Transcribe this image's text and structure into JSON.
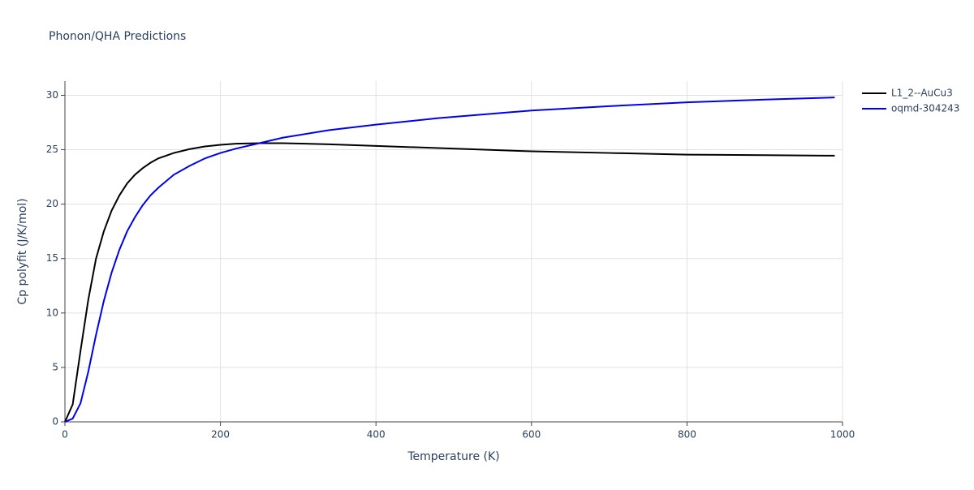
{
  "chart_data": {
    "type": "line",
    "title": "Phonon/QHA Predictions",
    "x_label": "Temperature (K)",
    "y_label": "Cp polyfit (J/K/mol)",
    "x": [
      0,
      10,
      20,
      30,
      40,
      50,
      60,
      70,
      80,
      90,
      100,
      110,
      120,
      140,
      160,
      180,
      200,
      220,
      250,
      280,
      340,
      400,
      480,
      600,
      700,
      800,
      900,
      990
    ],
    "series": [
      {
        "name": "L1_2--AuCu3",
        "color": "#000000",
        "values": [
          0,
          1.6,
          6.5,
          11.2,
          15,
          17.5,
          19.4,
          20.8,
          21.9,
          22.7,
          23.3,
          23.8,
          24.2,
          24.7,
          25.05,
          25.3,
          25.45,
          25.55,
          25.6,
          25.6,
          25.5,
          25.35,
          25.15,
          24.85,
          24.7,
          24.55,
          24.5,
          24.45
        ]
      },
      {
        "name": "oqmd-304243",
        "color": "#0000ee",
        "values": [
          0,
          0.3,
          1.7,
          4.6,
          8,
          11.1,
          13.7,
          15.8,
          17.5,
          18.8,
          19.9,
          20.8,
          21.5,
          22.7,
          23.5,
          24.2,
          24.7,
          25.1,
          25.6,
          26.1,
          26.8,
          27.3,
          27.9,
          28.6,
          29.0,
          29.35,
          29.6,
          29.8
        ]
      }
    ],
    "xlim": [
      0,
      1000
    ],
    "xticks": [
      0,
      200,
      400,
      600,
      800,
      1000
    ],
    "ylim": [
      0,
      31.3
    ],
    "yticks": [
      0,
      5,
      10,
      15,
      20,
      25,
      30
    ],
    "grid": true,
    "legend": "top-right"
  }
}
